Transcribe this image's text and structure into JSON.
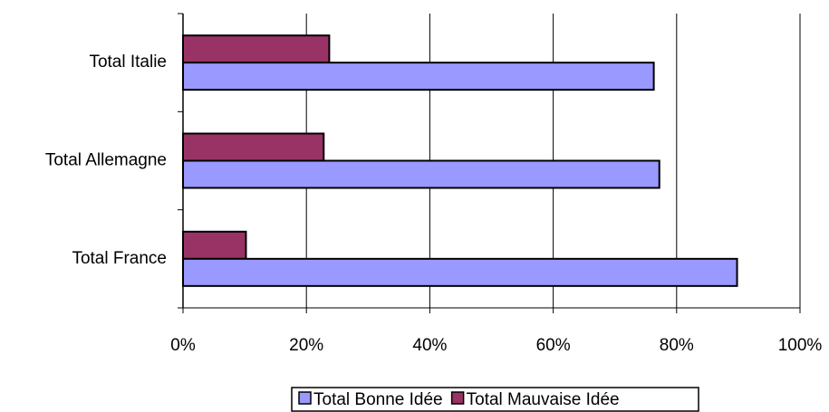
{
  "chart_data": {
    "type": "bar",
    "orientation": "horizontal",
    "categories": [
      "Total Italie",
      "Total Allemagne",
      "Total France"
    ],
    "series": [
      {
        "name": "Total Bonne Idée",
        "color": "#9999ff",
        "values": [
          76.3,
          77.2,
          89.8
        ]
      },
      {
        "name": "Total Mauvaise Idée",
        "color": "#993366",
        "values": [
          23.7,
          22.8,
          10.2
        ]
      }
    ],
    "xlim": [
      0,
      100
    ],
    "xticks": [
      {
        "value": 0,
        "label": "0%"
      },
      {
        "value": 20,
        "label": "20%"
      },
      {
        "value": 40,
        "label": "40%"
      },
      {
        "value": 60,
        "label": "60%"
      },
      {
        "value": 80,
        "label": "80%"
      },
      {
        "value": 100,
        "label": "100%"
      }
    ],
    "grid": true,
    "legend": "bottom"
  }
}
